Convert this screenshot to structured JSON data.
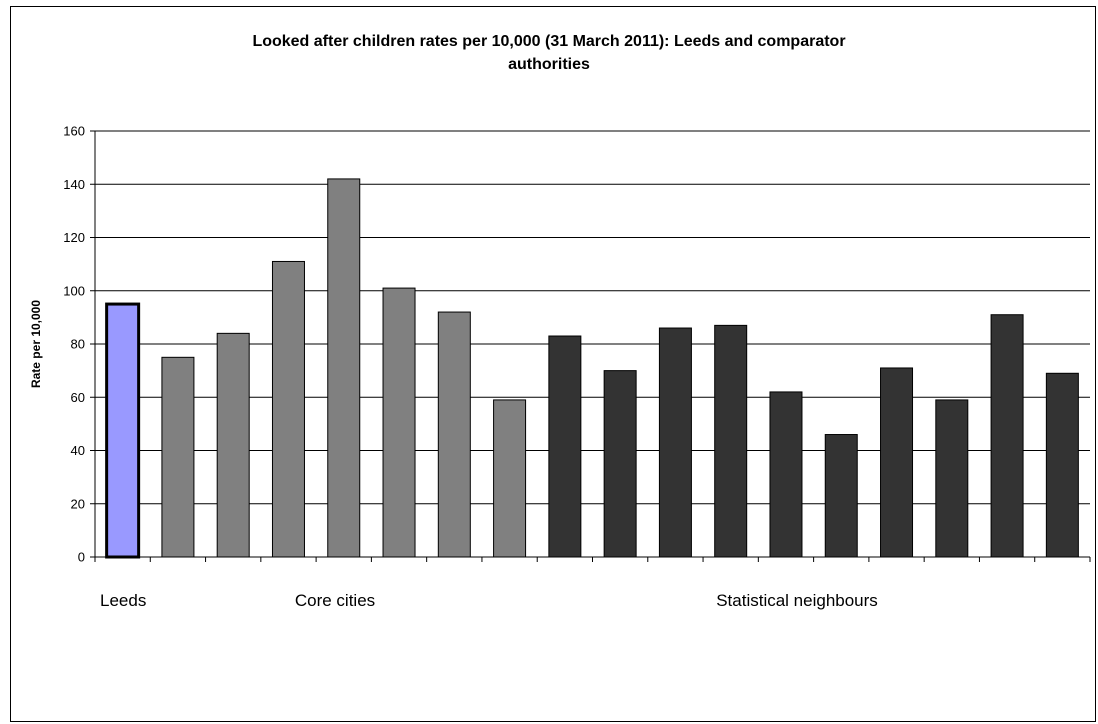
{
  "chart_data": {
    "type": "bar",
    "title_line1": "Looked after children rates per 10,000 (31 March 2011): Leeds and comparator",
    "title_line2": "authorities",
    "ylabel": "Rate per 10,000",
    "ylim": [
      0,
      160
    ],
    "yticks": [
      "0",
      "20",
      "40",
      "60",
      "80",
      "100",
      "120",
      "140",
      "160"
    ],
    "grid": true,
    "values": [
      95,
      75,
      84,
      111,
      142,
      101,
      92,
      59,
      83,
      70,
      86,
      87,
      62,
      46,
      71,
      59,
      91,
      69
    ],
    "groups": [
      {
        "label": "Leeds",
        "start": 0,
        "end": 0,
        "color": "#9999ff"
      },
      {
        "label": "Core cities",
        "start": 1,
        "end": 7,
        "color": "#808080"
      },
      {
        "label": "Statistical neighbours",
        "start": 8,
        "end": 17,
        "color": "#333333"
      }
    ]
  }
}
